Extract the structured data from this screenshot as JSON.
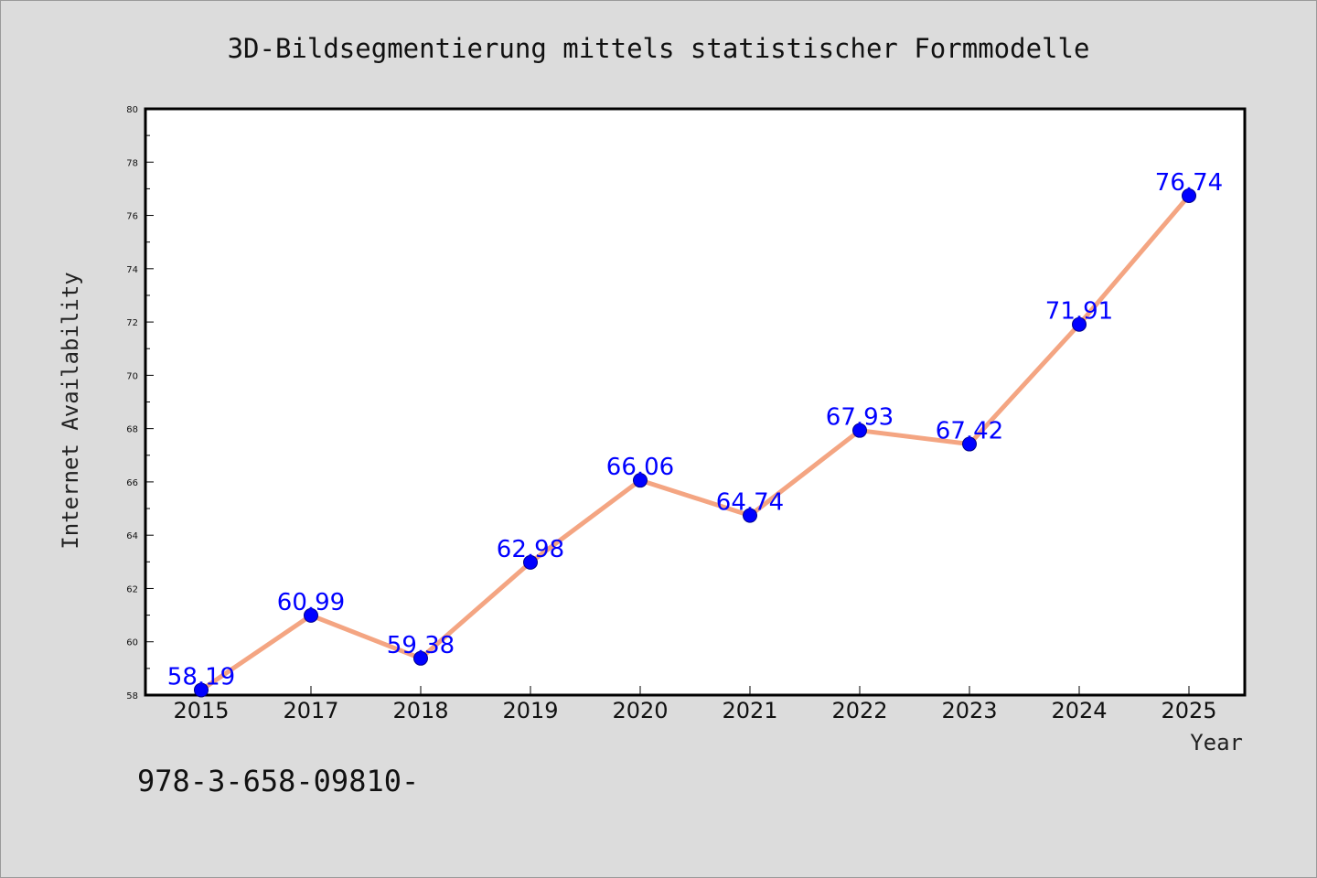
{
  "chart_data": {
    "type": "line",
    "title": "3D-Bildsegmentierung mittels statistischer Formmodelle",
    "xlabel": "Year",
    "ylabel": "Internet Availability",
    "categories": [
      "2015",
      "2017",
      "2018",
      "2019",
      "2020",
      "2021",
      "2022",
      "2023",
      "2024",
      "2025"
    ],
    "series": [
      {
        "values": [
          58.19,
          60.99,
          59.38,
          62.98,
          66.06,
          64.74,
          67.93,
          67.42,
          71.91,
          76.74
        ],
        "data_labels": [
          "58.19",
          "60.99",
          "59.38",
          "62.98",
          "66.06",
          "64.74",
          "67.93",
          "67.42",
          "71.91",
          "76.74"
        ]
      }
    ],
    "ylim": [
      58,
      80
    ],
    "yticks": [
      "58",
      "60",
      "62",
      "64",
      "66",
      "68",
      "70",
      "72",
      "74",
      "76",
      "78",
      "80"
    ],
    "grid": false,
    "legend": "none",
    "colors": {
      "line": "#f4a582",
      "marker": "#0000ff",
      "data_label": "#0000ff",
      "background": "#dcdcdc",
      "plot_area": "#ffffff"
    }
  },
  "footnote": "978-3-658-09810-"
}
